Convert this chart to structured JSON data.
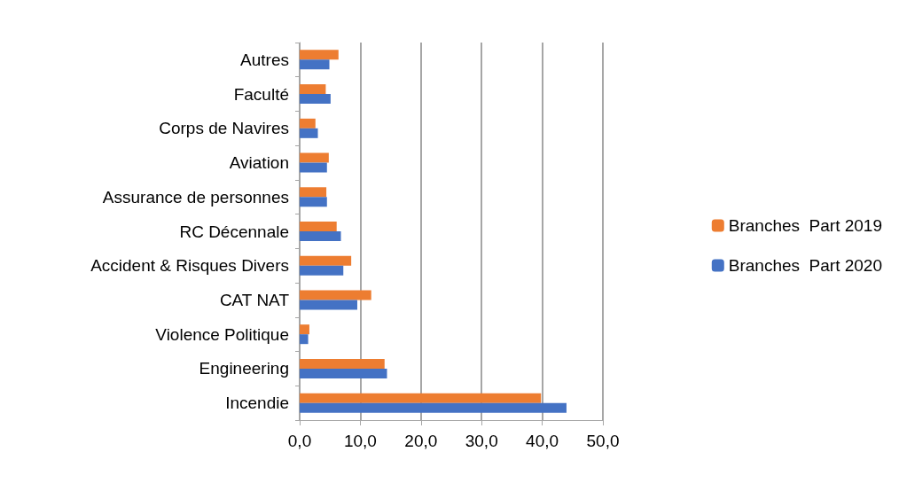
{
  "chart_data": {
    "type": "bar",
    "orientation": "horizontal",
    "categories": [
      "Autres",
      "Faculté",
      "Corps de Navires",
      "Aviation",
      "Assurance de personnes",
      "RC Décennale",
      "Accident & Risques Divers",
      "CAT NAT",
      "Violence Politique",
      "Engineering",
      "Incendie"
    ],
    "series": [
      {
        "name": "Branches  Part 2019",
        "color": "#ed7d31",
        "values": [
          6.4,
          4.3,
          2.6,
          4.8,
          4.4,
          6.1,
          8.5,
          11.8,
          1.6,
          14.0,
          39.8
        ]
      },
      {
        "name": "Branches  Part 2020",
        "color": "#4472c4",
        "values": [
          4.9,
          5.1,
          3.0,
          4.5,
          4.5,
          6.8,
          7.2,
          9.5,
          1.4,
          14.4,
          44.0
        ]
      }
    ],
    "xlim": [
      0,
      50
    ],
    "xticks": [
      {
        "value": 0,
        "label": "0,0"
      },
      {
        "value": 10,
        "label": "10,0"
      },
      {
        "value": 20,
        "label": "20,0"
      },
      {
        "value": 30,
        "label": "30,0"
      },
      {
        "value": 40,
        "label": "40,0"
      },
      {
        "value": 50,
        "label": "50,0"
      }
    ],
    "grid": "x",
    "legend": "right"
  }
}
